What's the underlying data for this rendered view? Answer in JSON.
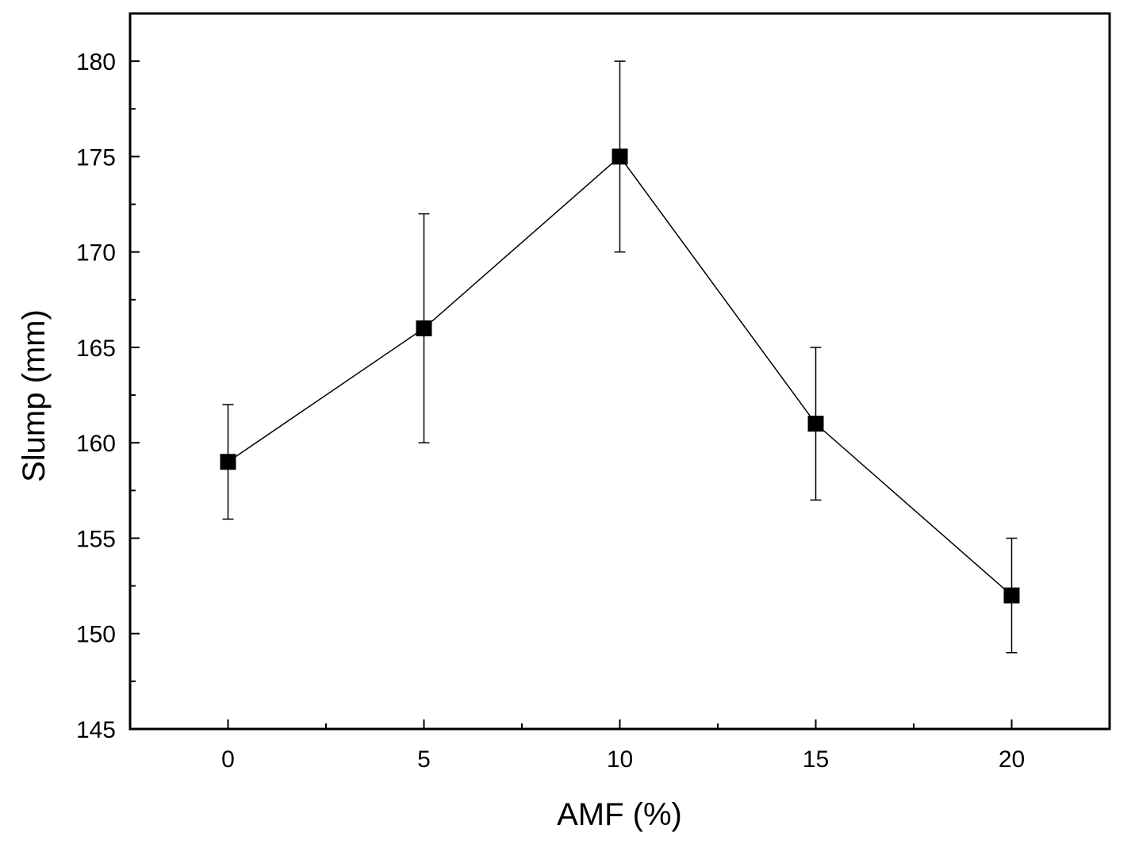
{
  "chart_data": {
    "type": "line",
    "title": "",
    "xlabel": "AMF (%)",
    "ylabel": "Slump (mm)",
    "xlim": [
      -2.5,
      22.5
    ],
    "ylim": [
      145,
      182.5
    ],
    "x_ticks": [
      0,
      5,
      10,
      15,
      20
    ],
    "y_ticks": [
      145,
      150,
      155,
      160,
      165,
      170,
      175,
      180
    ],
    "grid": false,
    "legend": "none",
    "series": [
      {
        "marker": "square",
        "color": "#000000",
        "x": [
          0,
          5,
          10,
          15,
          20
        ],
        "y": [
          159,
          166,
          175,
          161,
          152
        ],
        "error_low": [
          156,
          160,
          170,
          157,
          149
        ],
        "error_high": [
          162,
          172,
          180,
          165,
          155
        ]
      }
    ]
  }
}
